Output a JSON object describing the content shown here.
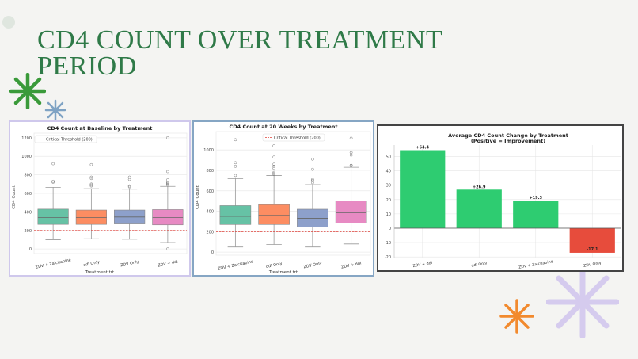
{
  "slide": {
    "title": "CD4 COUNT OVER TREATMENT PERIOD"
  },
  "colors": {
    "title": "#2f7a48",
    "threshold": "#e0413a",
    "improve": "#2ecc71",
    "decline": "#e74c3c"
  },
  "chart_data": [
    {
      "type": "box",
      "title": "CD4 Count at Baseline by Treatment",
      "xlabel": "Treatment trt",
      "ylabel": "CD4 Count",
      "ylim": [
        -50,
        1250
      ],
      "yticks": [
        0,
        200,
        400,
        600,
        800,
        1000,
        1200
      ],
      "threshold": {
        "value": 200,
        "label": "Critical Threshold (200)"
      },
      "legend": "top-left",
      "categories": [
        "ZDV + Zalcitabine",
        "ddI Only",
        "ZDV Only",
        "ZDV + ddI"
      ],
      "colors": [
        "#66c2a5",
        "#fc8d62",
        "#8da0cb",
        "#e78ac3"
      ],
      "boxes": [
        {
          "min": 100,
          "q1": 265,
          "median": 340,
          "q3": 430,
          "max": 665,
          "outliers": [
            720,
            730,
            920
          ]
        },
        {
          "min": 110,
          "q1": 265,
          "median": 340,
          "q3": 420,
          "max": 650,
          "outliers": [
            680,
            690,
            700,
            760,
            775,
            910
          ]
        },
        {
          "min": 105,
          "q1": 270,
          "median": 345,
          "q3": 420,
          "max": 645,
          "outliers": [
            670,
            680,
            750,
            775
          ]
        },
        {
          "min": 70,
          "q1": 260,
          "median": 340,
          "q3": 425,
          "max": 675,
          "outliers": [
            0,
            690,
            700,
            710,
            720,
            745,
            835,
            1200
          ]
        }
      ]
    },
    {
      "type": "box",
      "title": "CD4 Count at 20 Weeks by Treatment",
      "xlabel": "Treatment trt",
      "ylabel": "CD4 Count",
      "ylim": [
        -30,
        1180
      ],
      "yticks": [
        0,
        200,
        400,
        600,
        800,
        1000
      ],
      "threshold": {
        "value": 200,
        "label": "Critical Threshold (200)"
      },
      "legend": "top-center",
      "categories": [
        "ZDV + Zalcitabine",
        "ddI Only",
        "ZDV Only",
        "ZDV + ddI"
      ],
      "colors": [
        "#66c2a5",
        "#fc8d62",
        "#8da0cb",
        "#e78ac3"
      ],
      "boxes": [
        {
          "min": 50,
          "q1": 270,
          "median": 350,
          "q3": 455,
          "max": 720,
          "outliers": [
            750,
            840,
            875,
            1100
          ]
        },
        {
          "min": 75,
          "q1": 270,
          "median": 360,
          "q3": 465,
          "max": 750,
          "outliers": [
            760,
            770,
            780,
            820,
            840,
            860,
            930,
            1040
          ]
        },
        {
          "min": 50,
          "q1": 245,
          "median": 330,
          "q3": 420,
          "max": 660,
          "outliers": [
            680,
            700,
            710,
            810,
            910
          ]
        },
        {
          "min": 80,
          "q1": 285,
          "median": 385,
          "q3": 500,
          "max": 830,
          "outliers": [
            845,
            850,
            950,
            975,
            1115
          ]
        }
      ]
    },
    {
      "type": "bar",
      "title": "Average CD4 Count Change by Treatment",
      "subtitle": "(Positive = Improvement)",
      "xlabel": "",
      "ylabel": "",
      "ylim": [
        -21,
        58
      ],
      "yticks": [
        -20,
        -10,
        0,
        10,
        20,
        30,
        40,
        50
      ],
      "categories": [
        "ZDV + ddI",
        "ddI Only",
        "ZDV + Zalcitabine",
        "ZDV Only"
      ],
      "values": [
        54.4,
        26.9,
        19.3,
        -17.1
      ],
      "labels": [
        "+54.4",
        "+26.9",
        "+19.3",
        "-17.1"
      ]
    }
  ]
}
